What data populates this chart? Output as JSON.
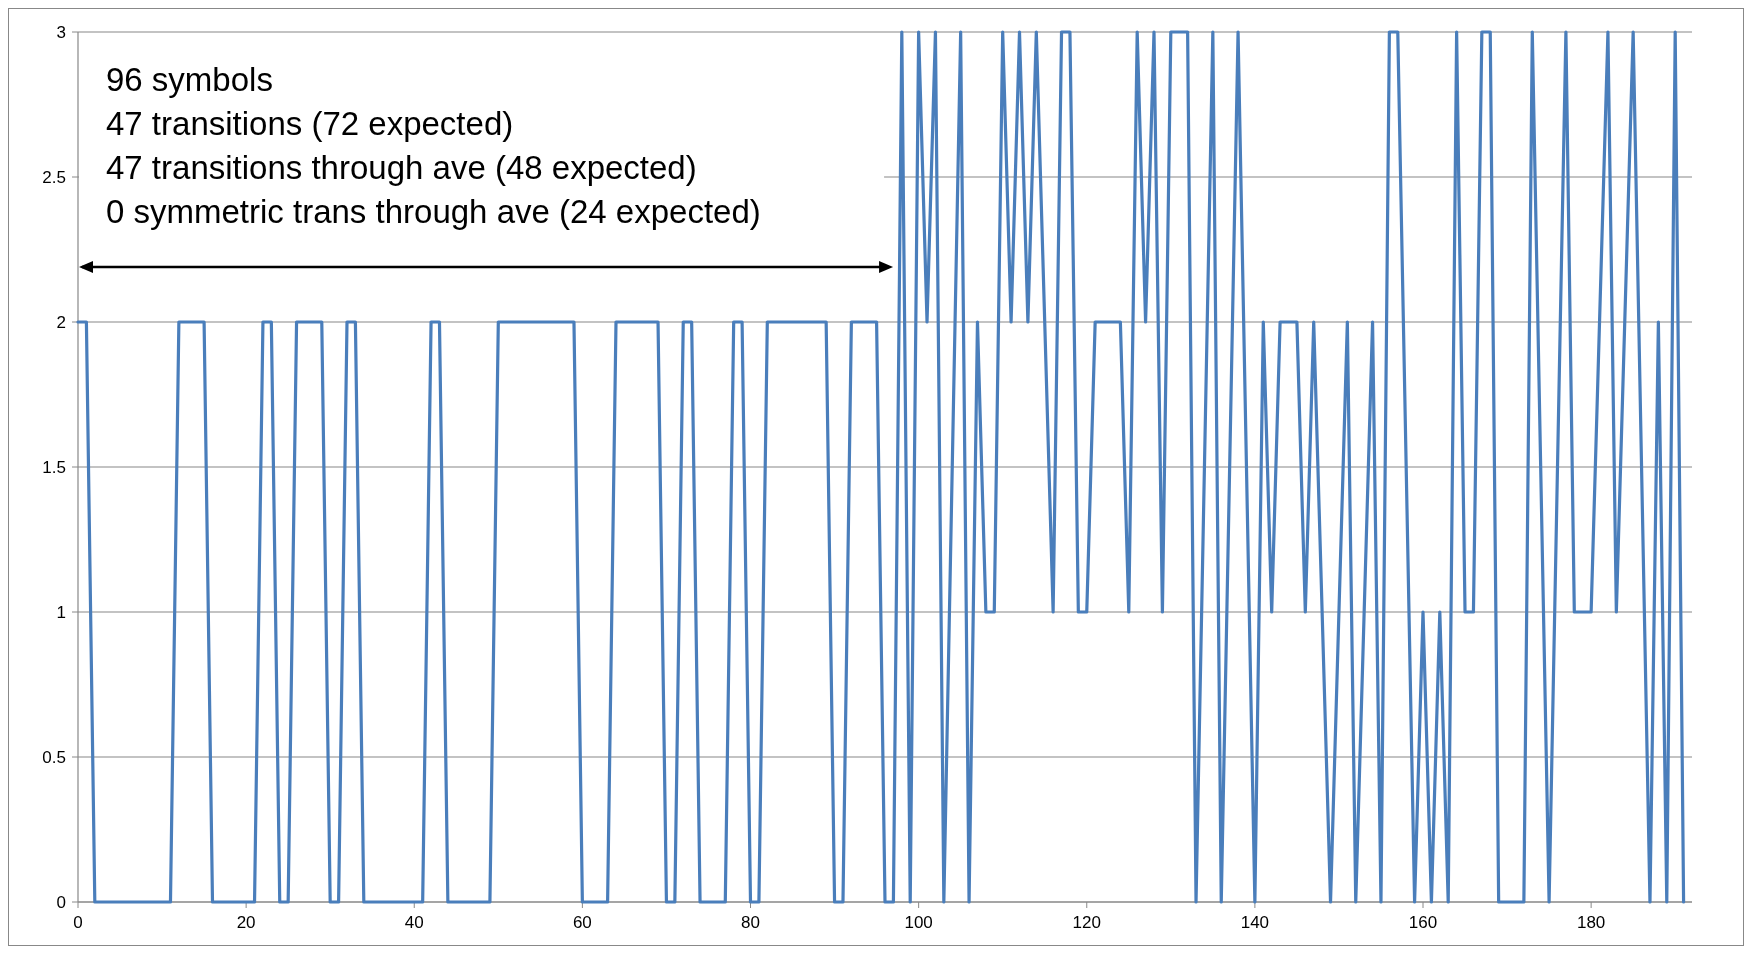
{
  "chart_data": {
    "type": "line",
    "xlim": [
      0,
      192
    ],
    "xticks": [
      0,
      20,
      40,
      60,
      80,
      100,
      120,
      140,
      160,
      180
    ],
    "ylim": [
      0,
      3
    ],
    "yticks": [
      0,
      0.5,
      1,
      1.5,
      2,
      2.5,
      3
    ],
    "grid": "y",
    "marker": "none",
    "line_style": "solid",
    "annotations": [
      "96 symbols",
      "47 transitions (72 expected)",
      "47 transitions through ave (48 expected)",
      "0 symmetric trans through ave (24 expected)"
    ],
    "series": [
      {
        "color": "#4a7ebb",
        "x": [
          0,
          1,
          2,
          11,
          12,
          15,
          16,
          21,
          22,
          23,
          24,
          25,
          26,
          29,
          30,
          31,
          32,
          33,
          34,
          41,
          42,
          43,
          44,
          49,
          50,
          59,
          60,
          63,
          64,
          69,
          70,
          71,
          72,
          73,
          74,
          77,
          78,
          79,
          80,
          81,
          82,
          89,
          90,
          91,
          92,
          95,
          96,
          97,
          98,
          99,
          100,
          101,
          102,
          103,
          105,
          106,
          107,
          108,
          109,
          110,
          111,
          112,
          113,
          114,
          116,
          117,
          118,
          119,
          120,
          121,
          124,
          125,
          126,
          127,
          128,
          129,
          130,
          132,
          133,
          135,
          136,
          138,
          140,
          141,
          142,
          143,
          145,
          146,
          147,
          149,
          151,
          152,
          154,
          155,
          156,
          157,
          159,
          160,
          161,
          162,
          163,
          164,
          165,
          166,
          167,
          168,
          169,
          172,
          173,
          175,
          177,
          178,
          180,
          182,
          183,
          185,
          187,
          188,
          189,
          190,
          191
        ],
        "values": [
          2,
          2,
          0,
          0,
          2,
          2,
          0,
          0,
          2,
          2,
          0,
          0,
          2,
          2,
          0,
          0,
          2,
          2,
          0,
          0,
          2,
          2,
          0,
          0,
          2,
          2,
          0,
          0,
          2,
          2,
          0,
          0,
          2,
          2,
          0,
          0,
          2,
          2,
          0,
          0,
          2,
          2,
          0,
          0,
          2,
          2,
          0,
          0,
          3,
          0,
          3,
          2,
          3,
          0,
          3,
          0,
          2,
          1,
          1,
          3,
          2,
          3,
          2,
          3,
          1,
          3,
          3,
          1,
          1,
          2,
          2,
          1,
          3,
          2,
          3,
          1,
          3,
          3,
          0,
          3,
          0,
          3,
          0,
          2,
          1,
          2,
          2,
          1,
          2,
          0,
          2,
          0,
          2,
          0,
          3,
          3,
          0,
          1,
          0,
          1,
          0,
          3,
          1,
          1,
          3,
          3,
          0,
          0,
          3,
          0,
          3,
          1,
          1,
          3,
          1,
          3,
          0,
          2,
          0,
          3,
          0
        ]
      }
    ]
  }
}
